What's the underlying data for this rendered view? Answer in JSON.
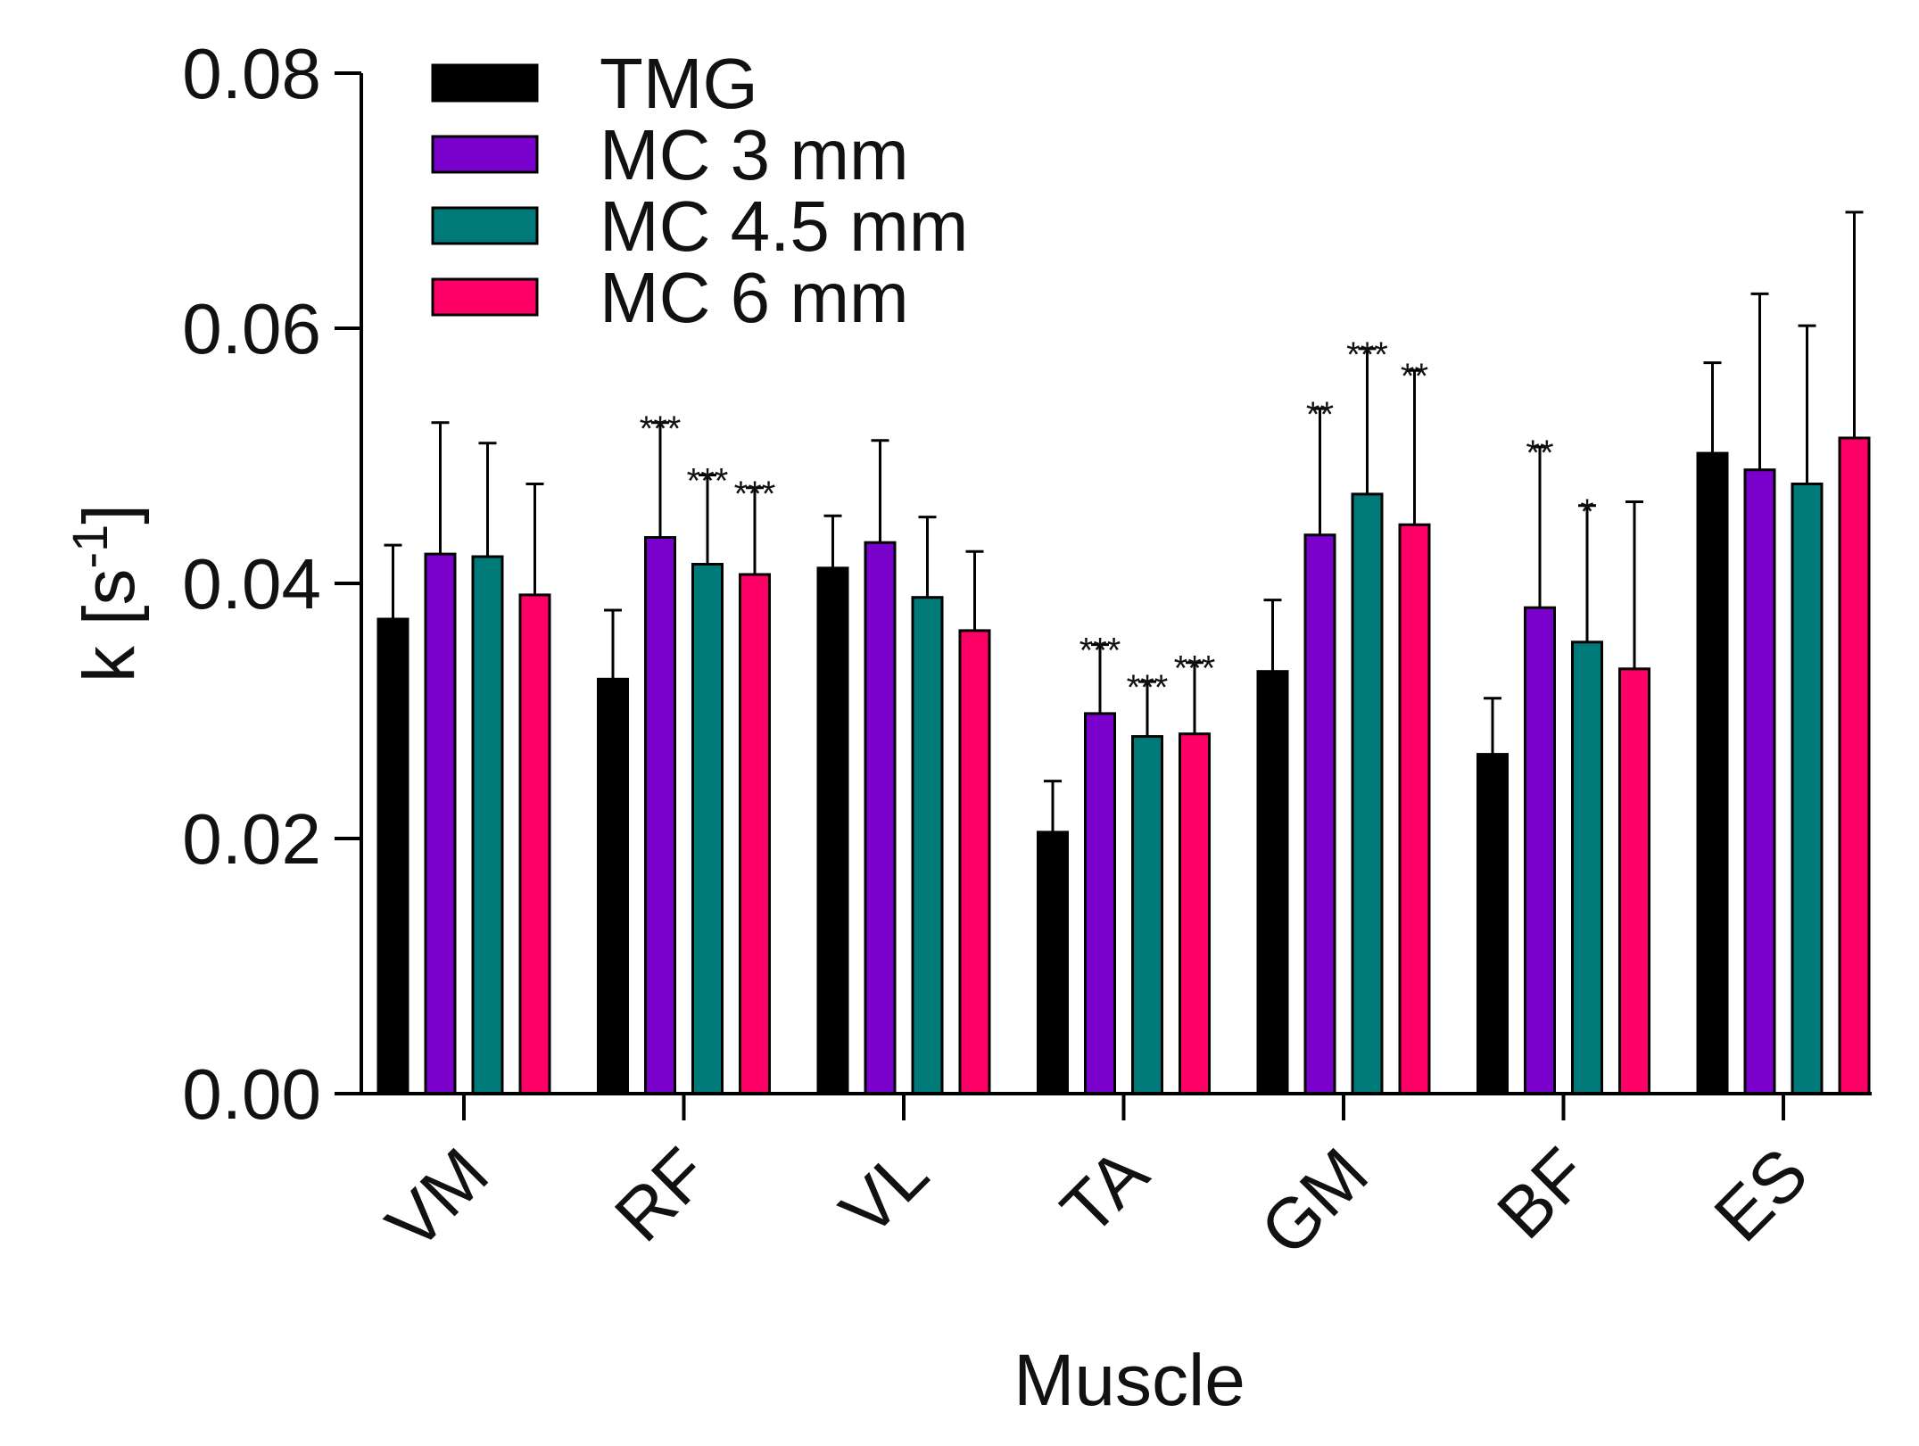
{
  "chart_data": {
    "type": "bar",
    "title": "",
    "xlabel": "Muscle",
    "ylabel": "k [s",
    "ylabel_unit_exponent": "-1",
    "ylabel_close": "]",
    "ylim": [
      0,
      0.08
    ],
    "yticks": [
      "0.00",
      "0.02",
      "0.04",
      "0.06",
      "0.08"
    ],
    "ytick_values": [
      0,
      0.02,
      0.04,
      0.06,
      0.08
    ],
    "categories": [
      "VM",
      "RF",
      "VL",
      "TA",
      "GM",
      "BF",
      "ES"
    ],
    "legend_position": "top-left",
    "series": [
      {
        "name": "TMG",
        "color": "#000000",
        "values": [
          0.0372,
          0.0325,
          0.0412,
          0.0205,
          0.0331,
          0.0266,
          0.0502
        ],
        "errors": [
          0.0058,
          0.0054,
          0.0041,
          0.004,
          0.0056,
          0.0044,
          0.0071
        ],
        "significance": [
          "",
          "",
          "",
          "",
          "",
          "",
          ""
        ]
      },
      {
        "name": "MC 3 mm",
        "color": "#7a00cc",
        "values": [
          0.0423,
          0.0436,
          0.0432,
          0.0298,
          0.0438,
          0.0381,
          0.0489
        ],
        "errors": [
          0.0103,
          0.009,
          0.008,
          0.0054,
          0.0099,
          0.0126,
          0.0138
        ],
        "significance": [
          "",
          "***",
          "",
          "***",
          "**",
          "**",
          ""
        ]
      },
      {
        "name": "MC 4.5 mm",
        "color": "#007a78",
        "values": [
          0.0421,
          0.0415,
          0.0389,
          0.028,
          0.047,
          0.0354,
          0.0478
        ],
        "errors": [
          0.0089,
          0.007,
          0.0063,
          0.0043,
          0.0114,
          0.0107,
          0.0124
        ],
        "significance": [
          "",
          "***",
          "",
          "***",
          "***",
          "*",
          ""
        ]
      },
      {
        "name": "MC 6 mm",
        "color": "#ff0066",
        "values": [
          0.0391,
          0.0407,
          0.0363,
          0.0282,
          0.0446,
          0.0333,
          0.0514
        ],
        "errors": [
          0.0087,
          0.0068,
          0.0062,
          0.0056,
          0.0121,
          0.0131,
          0.0177
        ],
        "significance": [
          "",
          "***",
          "",
          "***",
          "**",
          "",
          ""
        ]
      }
    ]
  }
}
